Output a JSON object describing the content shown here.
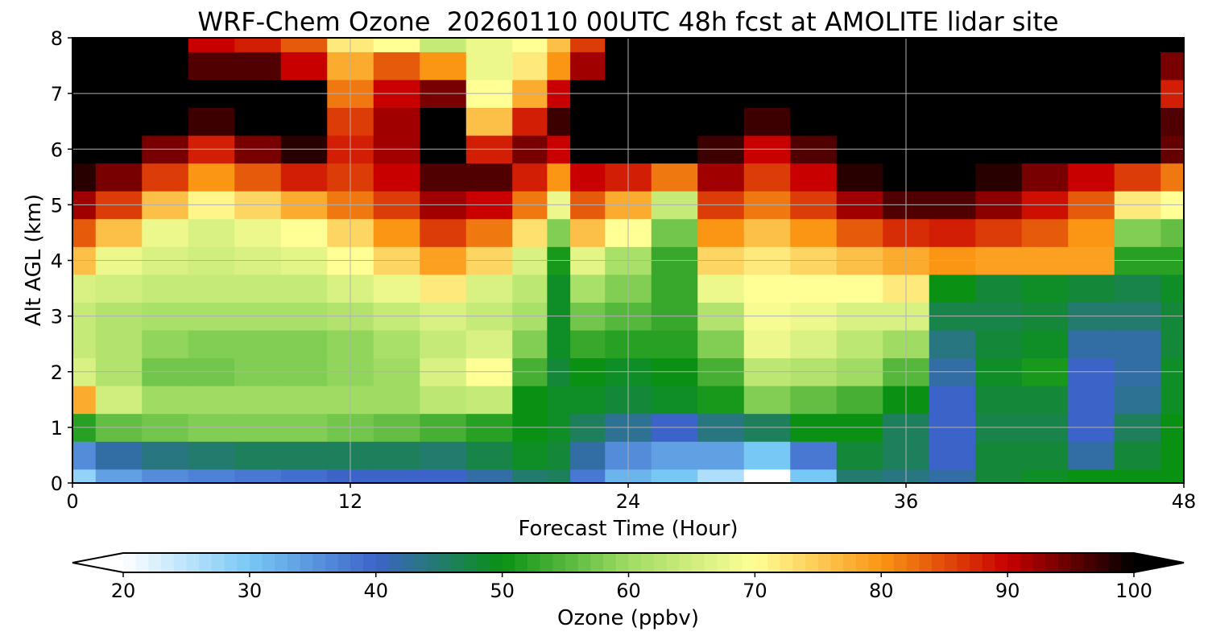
{
  "chart_data": {
    "type": "heatmap",
    "title": "WRF-Chem Ozone  20260110 00UTC 48h fcst at AMOLITE lidar site",
    "xlabel": "Forecast Time (Hour)",
    "ylabel": "Alt AGL (km)",
    "xlim": [
      0,
      48
    ],
    "ylim": [
      0,
      8
    ],
    "xticks": [
      "0",
      "12",
      "24",
      "36",
      "48"
    ],
    "yticks": [
      "0",
      "1",
      "2",
      "3",
      "4",
      "5",
      "6",
      "7",
      "8"
    ],
    "grid": true,
    "colorbar": {
      "label": "Ozone  (ppbv)",
      "ticks": [
        "20",
        "30",
        "40",
        "50",
        "60",
        "70",
        "80",
        "90",
        "100"
      ],
      "range": [
        20,
        100
      ],
      "extend": "both",
      "colors": [
        "#ffffff",
        "#78c8f5",
        "#3c64c8",
        "#0a9114",
        "#a0dc64",
        "#ffff96",
        "#fa9614",
        "#c80000",
        "#000000"
      ]
    },
    "x_hours": [
      0,
      2,
      4,
      6,
      8,
      10,
      12,
      14,
      16,
      18,
      20,
      21,
      22,
      24,
      26,
      28,
      30,
      32,
      34,
      36,
      38,
      40,
      42,
      44,
      46,
      48
    ],
    "z_km": [
      0,
      0.5,
      1,
      1.5,
      2,
      2.5,
      3,
      3.5,
      4,
      4.5,
      5,
      5.5,
      6,
      6.5,
      7,
      7.5,
      8
    ],
    "ozone_ppbv": [
      [
        28,
        34,
        36,
        37,
        38,
        39,
        40,
        40,
        40,
        42,
        45,
        46,
        38,
        32,
        30,
        26,
        20,
        30,
        45,
        44,
        42,
        48,
        49,
        50,
        50,
        50
      ],
      [
        36,
        42,
        44,
        45,
        46,
        46,
        46,
        46,
        45,
        47,
        49,
        48,
        42,
        36,
        34,
        34,
        30,
        38,
        48,
        46,
        40,
        48,
        48,
        42,
        48,
        50
      ],
      [
        52,
        56,
        57,
        58,
        58,
        58,
        57,
        56,
        54,
        52,
        50,
        49,
        46,
        43,
        40,
        44,
        46,
        50,
        50,
        46,
        40,
        47,
        47,
        40,
        46,
        50
      ],
      [
        78,
        65,
        60,
        60,
        60,
        60,
        60,
        60,
        63,
        64,
        50,
        49,
        49,
        48,
        49,
        51,
        58,
        56,
        54,
        50,
        40,
        48,
        48,
        40,
        43,
        49
      ],
      [
        66,
        62,
        57,
        57,
        58,
        58,
        59,
        60,
        66,
        70,
        54,
        48,
        50,
        49,
        50,
        54,
        63,
        62,
        60,
        55,
        42,
        49,
        51,
        40,
        42,
        49
      ],
      [
        64,
        62,
        59,
        58,
        58,
        58,
        59,
        61,
        64,
        66,
        58,
        49,
        53,
        52,
        52,
        58,
        68,
        66,
        63,
        60,
        44,
        48,
        49,
        42,
        42,
        48
      ],
      [
        64,
        62,
        61,
        61,
        61,
        61,
        62,
        64,
        66,
        64,
        61,
        49,
        57,
        55,
        53,
        62,
        69,
        68,
        66,
        66,
        47,
        47,
        48,
        45,
        45,
        48
      ],
      [
        66,
        65,
        64,
        64,
        64,
        64,
        66,
        68,
        72,
        66,
        63,
        49,
        61,
        58,
        53,
        68,
        70,
        70,
        70,
        72,
        50,
        48,
        49,
        48,
        47,
        49
      ],
      [
        76,
        68,
        66,
        65,
        66,
        67,
        70,
        74,
        79,
        74,
        66,
        51,
        67,
        61,
        53,
        74,
        72,
        74,
        76,
        78,
        80,
        79,
        79,
        79,
        52,
        52
      ],
      [
        84,
        76,
        68,
        66,
        68,
        70,
        74,
        80,
        86,
        82,
        73,
        58,
        76,
        70,
        57,
        80,
        76,
        80,
        84,
        87,
        88,
        86,
        84,
        80,
        58,
        56
      ],
      [
        92,
        86,
        76,
        71,
        74,
        78,
        82,
        86,
        92,
        90,
        82,
        68,
        84,
        78,
        64,
        86,
        82,
        86,
        92,
        96,
        96,
        93,
        89,
        84,
        72,
        70
      ],
      [
        98,
        94,
        86,
        80,
        84,
        88,
        86,
        90,
        96,
        96,
        88,
        80,
        90,
        88,
        82,
        92,
        86,
        90,
        98,
        100,
        100,
        98,
        94,
        90,
        86,
        82
      ],
      [
        100,
        100,
        94,
        88,
        94,
        98,
        88,
        92,
        100,
        88,
        94,
        90,
        100,
        100,
        100,
        97,
        90,
        96,
        100,
        100,
        100,
        100,
        100,
        100,
        100,
        95
      ],
      [
        100,
        100,
        100,
        97,
        100,
        100,
        86,
        92,
        100,
        76,
        88,
        97,
        100,
        100,
        100,
        100,
        97,
        100,
        100,
        100,
        100,
        100,
        100,
        100,
        100,
        96
      ],
      [
        100,
        100,
        100,
        100,
        100,
        100,
        82,
        90,
        94,
        70,
        78,
        90,
        100,
        100,
        100,
        100,
        100,
        100,
        100,
        100,
        100,
        100,
        100,
        100,
        100,
        88
      ],
      [
        100,
        100,
        100,
        96,
        96,
        90,
        78,
        84,
        80,
        68,
        72,
        80,
        92,
        100,
        100,
        100,
        100,
        100,
        100,
        100,
        100,
        100,
        100,
        100,
        100,
        94
      ],
      [
        100,
        100,
        100,
        90,
        88,
        84,
        72,
        70,
        64,
        68,
        70,
        76,
        86,
        100,
        100,
        100,
        100,
        100,
        100,
        100,
        100,
        100,
        100,
        100,
        100,
        100
      ]
    ]
  }
}
